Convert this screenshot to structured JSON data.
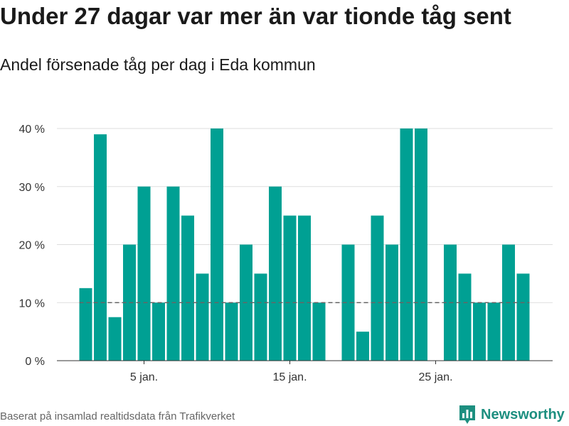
{
  "header": {
    "title": "Under 27 dagar var mer än var tionde tåg sent",
    "subtitle": "Andel försenade tåg per dag i Eda kommun"
  },
  "footer": {
    "source": "Baserat på insamlad realtidsdata från Trafikverket",
    "brand": "Newsworthy",
    "brand_icon": "bar-chart-logo-icon"
  },
  "colors": {
    "bar": "#00a093",
    "grid": "#dddddd",
    "axis": "#333333",
    "threshold": "#666666",
    "brand": "#1d8f80"
  },
  "chart_data": {
    "type": "bar",
    "x": [
      1,
      2,
      3,
      4,
      5,
      6,
      7,
      8,
      9,
      10,
      11,
      12,
      13,
      14,
      15,
      16,
      17,
      18,
      19,
      20,
      21,
      22,
      23,
      24,
      25,
      26,
      27,
      28,
      29,
      30,
      31
    ],
    "values": [
      12.5,
      39,
      7.5,
      20,
      30,
      10,
      30,
      25,
      15,
      40,
      10,
      20,
      15,
      30,
      25,
      25,
      10,
      0,
      20,
      5,
      25,
      20,
      40,
      40,
      0,
      20,
      15,
      10,
      10,
      20,
      15
    ],
    "xlabel": "",
    "ylabel": "",
    "ylim": [
      0,
      40
    ],
    "yticks": [
      0,
      10,
      20,
      30,
      40
    ],
    "ytick_labels": [
      "0 %",
      "10 %",
      "20 %",
      "30 %",
      "40 %"
    ],
    "xticks": [
      5,
      15,
      25
    ],
    "xtick_labels": [
      "5 jan.",
      "15 jan.",
      "25 jan."
    ],
    "threshold": 10,
    "grid": true
  }
}
